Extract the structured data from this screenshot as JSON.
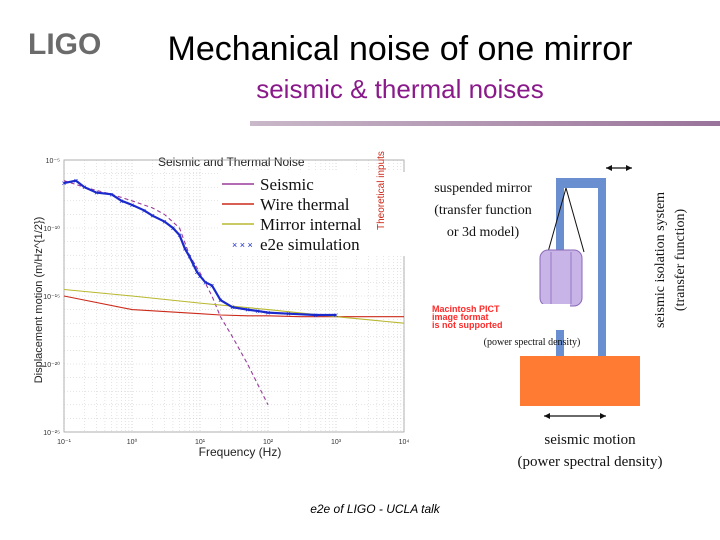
{
  "slide": {
    "logo_text": "LIGO",
    "title": "Mechanical noise of one mirror",
    "subtitle": "seismic & thermal noises",
    "footer": "e2e of LIGO - UCLA talk",
    "colors": {
      "subtitle": "#8a1a8a",
      "rule": "#9a739a",
      "suspension_frame": "#6a8fd0",
      "mirror_fill": "#c8b4e6",
      "ground_block": "#ff7a33"
    }
  },
  "diagram": {
    "mirror_label": [
      "suspended mirror",
      "(transfer function",
      "or 3d model)"
    ],
    "isolation_label": [
      "seismic isolation system",
      "(transfer function)"
    ],
    "psd_label": "(power spectral density)",
    "ground_label": [
      "seismic motion",
      "(power spectral density)"
    ],
    "broken_image_text": [
      "Macintosh PICT",
      "image format",
      "is not supported"
    ]
  },
  "chart_data": {
    "type": "line",
    "title": "Seismic and Thermal Noise",
    "xlabel": "Frequency (Hz)",
    "ylabel": "Displacement motion (m/Hz^{1/2})",
    "xscale": "log",
    "yscale": "log",
    "xlim": [
      0.1,
      10000
    ],
    "ylim": [
      1e-25,
      1e-05
    ],
    "x_ticks": [
      "10⁻¹",
      "10⁰",
      "10¹",
      "10²",
      "10³",
      "10⁴"
    ],
    "y_ticks": [
      "10⁻⁵",
      "10⁻¹⁰",
      "10⁻¹⁵",
      "10⁻²⁰",
      "10⁻²⁵"
    ],
    "grid": true,
    "legend_position": "top-right",
    "legend_note": "Theoretical inputs",
    "series": [
      {
        "name": "Seismic",
        "color": "#9a3a9a",
        "x": [
          0.1,
          0.2,
          0.5,
          1,
          2,
          3,
          5,
          7,
          10,
          15,
          20,
          30,
          50,
          100
        ],
        "y": [
          3e-07,
          1e-07,
          3e-08,
          1e-08,
          3e-09,
          1e-09,
          1e-10,
          1e-12,
          5e-14,
          1e-15,
          3e-17,
          1e-18,
          1e-20,
          1e-23
        ]
      },
      {
        "name": "Wire thermal",
        "color": "#cc2a1a",
        "x": [
          0.1,
          1,
          10,
          20,
          50,
          100,
          300,
          1000,
          3000,
          10000
        ],
        "y": [
          1e-15,
          1e-16,
          5e-17,
          4e-17,
          3.5e-17,
          3.5e-17,
          3e-17,
          3e-17,
          3e-17,
          3e-17
        ]
      },
      {
        "name": "Mirror internal",
        "color": "#b8b830",
        "x": [
          0.1,
          1,
          10,
          100,
          1000,
          10000
        ],
        "y": [
          3e-15,
          1e-15,
          3e-16,
          1e-16,
          3e-17,
          1e-17
        ]
      },
      {
        "name": "e2e simulation",
        "color": "#1a2acc",
        "x": [
          0.1,
          0.15,
          0.2,
          0.3,
          0.5,
          0.7,
          1,
          1.5,
          2,
          3,
          4,
          5,
          6,
          7,
          8,
          9,
          10,
          12,
          15,
          20,
          30,
          50,
          70,
          100,
          200,
          500,
          1000
        ],
        "y": [
          2e-07,
          3e-07,
          1e-07,
          4e-08,
          3e-08,
          1e-08,
          5e-09,
          2e-09,
          8e-10,
          3e-10,
          1e-10,
          3e-11,
          3e-12,
          8e-13,
          2e-13,
          6e-14,
          3e-14,
          1e-14,
          6e-15,
          5e-16,
          1.5e-16,
          1e-16,
          8e-17,
          6e-17,
          5e-17,
          4e-17,
          4e-17
        ]
      }
    ]
  }
}
